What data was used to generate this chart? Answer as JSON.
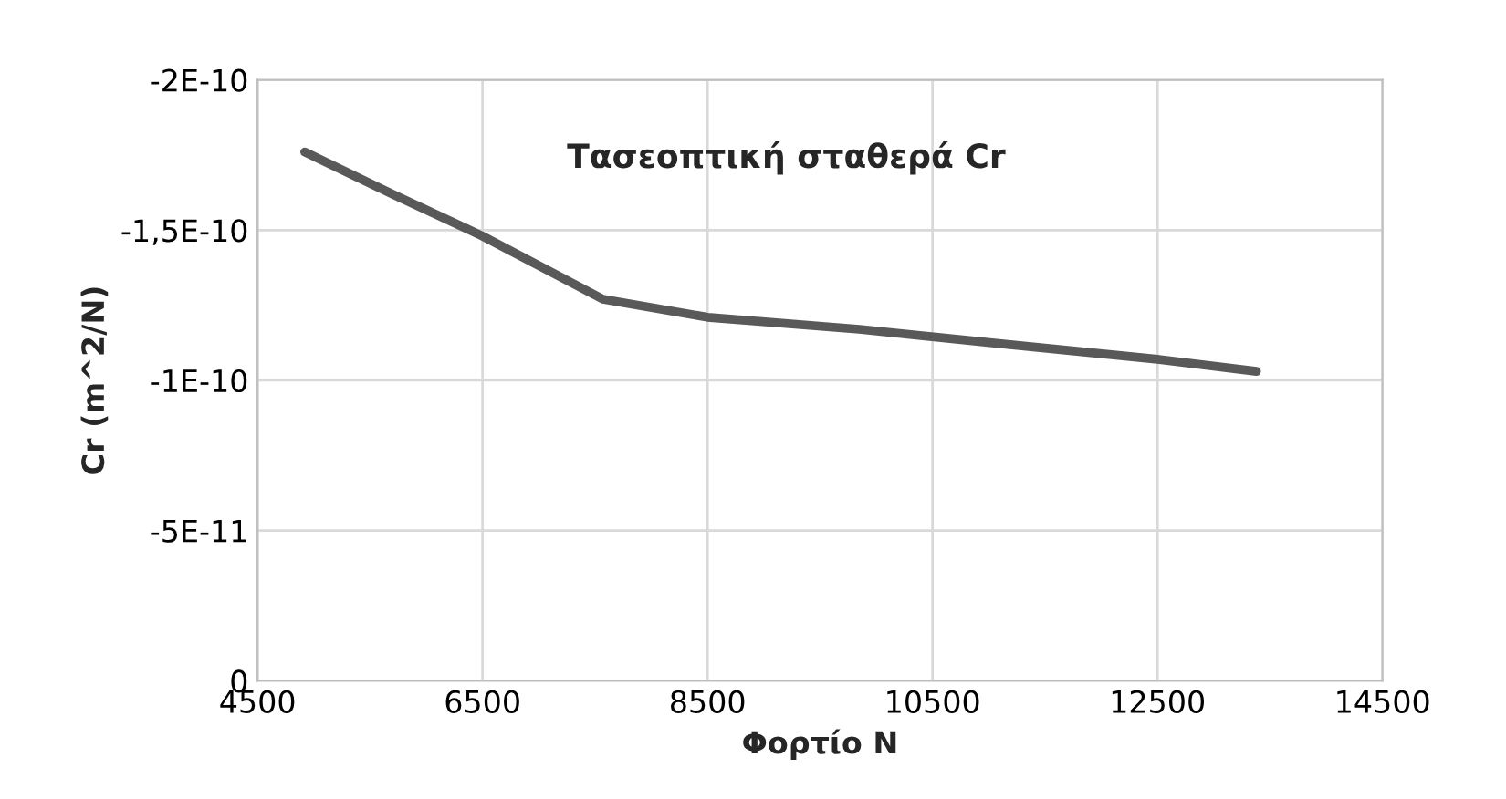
{
  "chart_data": {
    "type": "line",
    "title": "Τασεοπτική σταθερά Cr",
    "xlabel": "Φορτίο N",
    "ylabel": "Cr (m^2/N)",
    "x": [
      4920,
      5700,
      6500,
      7570,
      8500,
      9850,
      11150,
      12500,
      13380
    ],
    "series": [
      {
        "color": "#595959",
        "values": [
          -1.76e-10,
          -1.62e-10,
          -1.48e-10,
          -1.27e-10,
          -1.21e-10,
          -1.17e-10,
          -1.12e-10,
          -1.07e-10,
          -1.03e-10
        ]
      }
    ],
    "xlim": [
      4500,
      14500
    ],
    "xticks": [
      4500,
      6500,
      8500,
      10500,
      12500,
      14500
    ],
    "ylim": [
      0,
      -2e-10
    ],
    "yticks": [
      {
        "value": 0,
        "label": "0"
      },
      {
        "value": -5e-11,
        "label": "-5E-11"
      },
      {
        "value": -1e-10,
        "label": "-1E-10"
      },
      {
        "value": -1.5e-10,
        "label": "-1,5E-10"
      },
      {
        "value": -2e-10,
        "label": "-2E-10"
      }
    ],
    "grid": true,
    "marker": "none",
    "line_style": "solid",
    "legend": false
  }
}
